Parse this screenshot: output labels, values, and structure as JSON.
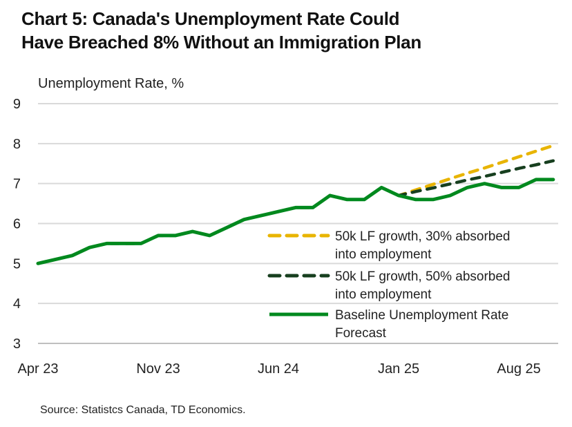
{
  "title_lines": [
    "Chart 5: Canada's Unemployment Rate Could",
    "Have Breached 8% Without an Immigration Plan"
  ],
  "source": "Source: Statistcs Canada, TD Economics.",
  "chart_data": {
    "type": "line",
    "title": "Chart 5: Canada's Unemployment Rate Could Have Breached 8% Without an Immigration Plan",
    "ylabel": "Unemployment Rate, %",
    "xlabel": "",
    "ylim": [
      3,
      9
    ],
    "yticks": [
      3,
      4,
      5,
      6,
      7,
      8,
      9
    ],
    "xticks": [
      "Apr 23",
      "Nov 23",
      "Jun 24",
      "Jan 25",
      "Aug 25"
    ],
    "x": [
      "Apr 23",
      "May 23",
      "Jun 23",
      "Jul 23",
      "Aug 23",
      "Sep 23",
      "Oct 23",
      "Nov 23",
      "Dec 23",
      "Jan 24",
      "Feb 24",
      "Mar 24",
      "Apr 24",
      "May 24",
      "Jun 24",
      "Jul 24",
      "Aug 24",
      "Sep 24",
      "Oct 24",
      "Nov 24",
      "Dec 24",
      "Jan 25",
      "Feb 25",
      "Mar 25",
      "Apr 25",
      "May 25",
      "Jun 25",
      "Jul 25",
      "Aug 25",
      "Sep 25",
      "Oct 25"
    ],
    "grid": true,
    "legend_position": "center-right",
    "series": [
      {
        "name": "50k LF growth, 30% absorbed into employment",
        "style": "dashed",
        "color": "#E8B400",
        "values": [
          5.0,
          5.1,
          5.2,
          5.4,
          5.5,
          5.5,
          5.5,
          5.7,
          5.7,
          5.8,
          5.7,
          5.9,
          6.1,
          6.2,
          6.3,
          6.4,
          6.4,
          6.7,
          6.6,
          6.6,
          6.9,
          6.7,
          6.84,
          6.98,
          7.12,
          7.26,
          7.39,
          7.53,
          7.67,
          7.81,
          7.95
        ]
      },
      {
        "name": "50k LF growth, 50% absorbed into employment",
        "style": "dashed",
        "color": "#173F1F",
        "values": [
          5.0,
          5.1,
          5.2,
          5.4,
          5.5,
          5.5,
          5.5,
          5.7,
          5.7,
          5.8,
          5.7,
          5.9,
          6.1,
          6.2,
          6.3,
          6.4,
          6.4,
          6.7,
          6.6,
          6.6,
          6.9,
          6.7,
          6.8,
          6.89,
          6.99,
          7.09,
          7.18,
          7.28,
          7.38,
          7.47,
          7.57
        ]
      },
      {
        "name": "Baseline Unemployment Rate Forecast",
        "style": "solid",
        "color": "#00891E",
        "values": [
          5.0,
          5.1,
          5.2,
          5.4,
          5.5,
          5.5,
          5.5,
          5.7,
          5.7,
          5.8,
          5.7,
          5.9,
          6.1,
          6.2,
          6.3,
          6.4,
          6.4,
          6.7,
          6.6,
          6.6,
          6.9,
          6.7,
          6.6,
          6.6,
          6.7,
          6.9,
          7.0,
          6.9,
          6.9,
          7.1,
          7.1
        ]
      }
    ],
    "legend_lines": [
      [
        "50k LF growth, 30% absorbed",
        "into employment"
      ],
      [
        "50k LF growth, 50% absorbed",
        "into employment"
      ],
      [
        "Baseline Unemployment Rate",
        "Forecast"
      ]
    ]
  }
}
